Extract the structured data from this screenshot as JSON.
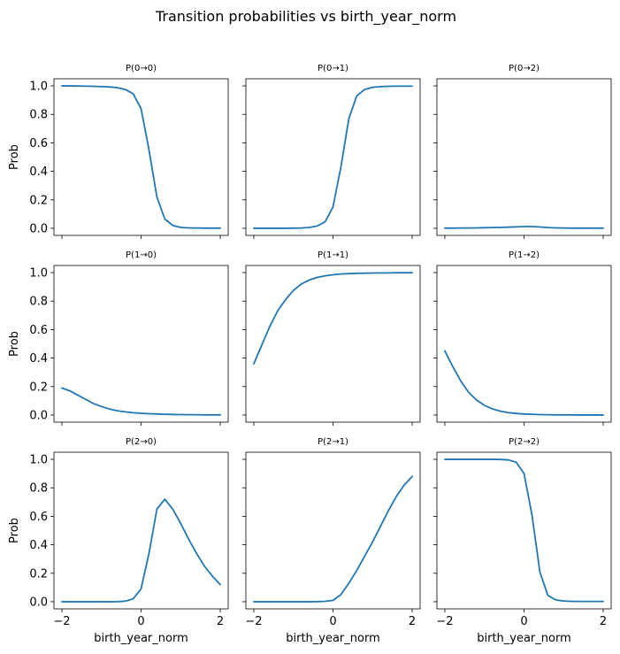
{
  "chart_data": {
    "type": "line",
    "suptitle": "Transition probabilities vs birth_year_norm",
    "xlabel": "birth_year_norm",
    "ylabel": "Prob",
    "xlim": [
      -2.2,
      2.2
    ],
    "ylim": [
      -0.05,
      1.05
    ],
    "xticks": [
      -2,
      0,
      2
    ],
    "yticks": [
      0.0,
      0.2,
      0.4,
      0.6,
      0.8,
      1.0
    ],
    "grid": false,
    "line_color": "#1f77b4",
    "x": [
      -2.0,
      -1.8,
      -1.6,
      -1.4,
      -1.2,
      -1.0,
      -0.8,
      -0.6,
      -0.4,
      -0.2,
      0.0,
      0.2,
      0.4,
      0.6,
      0.8,
      1.0,
      1.2,
      1.4,
      1.6,
      1.8,
      2.0
    ],
    "panels": [
      {
        "title": "P(0→0)",
        "row": 0,
        "col": 0,
        "values": [
          1.0,
          1.0,
          0.999,
          0.998,
          0.997,
          0.995,
          0.993,
          0.988,
          0.975,
          0.945,
          0.84,
          0.55,
          0.22,
          0.065,
          0.02,
          0.006,
          0.003,
          0.002,
          0.001,
          0.001,
          0.001
        ]
      },
      {
        "title": "P(0→1)",
        "row": 0,
        "col": 1,
        "values": [
          0.0,
          0.0,
          0.0,
          0.0,
          0.0,
          0.001,
          0.002,
          0.006,
          0.016,
          0.045,
          0.15,
          0.43,
          0.77,
          0.93,
          0.975,
          0.99,
          0.995,
          0.997,
          0.998,
          0.998,
          0.998
        ]
      },
      {
        "title": "P(0→2)",
        "row": 0,
        "col": 2,
        "values": [
          0.001,
          0.001,
          0.002,
          0.002,
          0.003,
          0.004,
          0.005,
          0.006,
          0.008,
          0.01,
          0.012,
          0.012,
          0.009,
          0.005,
          0.003,
          0.002,
          0.001,
          0.001,
          0.001,
          0.001,
          0.001
        ]
      },
      {
        "title": "P(1→0)",
        "row": 1,
        "col": 0,
        "values": [
          0.19,
          0.17,
          0.14,
          0.11,
          0.08,
          0.06,
          0.042,
          0.03,
          0.022,
          0.016,
          0.012,
          0.009,
          0.007,
          0.005,
          0.004,
          0.003,
          0.002,
          0.002,
          0.001,
          0.001,
          0.001
        ]
      },
      {
        "title": "P(1→1)",
        "row": 1,
        "col": 1,
        "values": [
          0.36,
          0.49,
          0.62,
          0.73,
          0.81,
          0.875,
          0.92,
          0.948,
          0.966,
          0.978,
          0.985,
          0.99,
          0.993,
          0.995,
          0.996,
          0.997,
          0.998,
          0.998,
          0.999,
          0.999,
          0.999
        ]
      },
      {
        "title": "P(1→2)",
        "row": 1,
        "col": 2,
        "values": [
          0.45,
          0.34,
          0.24,
          0.16,
          0.105,
          0.068,
          0.043,
          0.027,
          0.017,
          0.011,
          0.007,
          0.005,
          0.003,
          0.002,
          0.001,
          0.001,
          0.001,
          0.0,
          0.0,
          0.0,
          0.0
        ]
      },
      {
        "title": "P(2→0)",
        "row": 2,
        "col": 0,
        "values": [
          0.0,
          0.0,
          0.0,
          0.0,
          0.0,
          0.0,
          0.0,
          0.001,
          0.004,
          0.02,
          0.09,
          0.34,
          0.65,
          0.72,
          0.65,
          0.55,
          0.44,
          0.34,
          0.25,
          0.18,
          0.12
        ]
      },
      {
        "title": "P(2→1)",
        "row": 2,
        "col": 1,
        "values": [
          0.0,
          0.0,
          0.0,
          0.0,
          0.0,
          0.0,
          0.0,
          0.0,
          0.001,
          0.003,
          0.01,
          0.05,
          0.13,
          0.22,
          0.32,
          0.42,
          0.53,
          0.64,
          0.74,
          0.82,
          0.88
        ]
      },
      {
        "title": "P(2→2)",
        "row": 2,
        "col": 2,
        "values": [
          1.0,
          1.0,
          1.0,
          1.0,
          1.0,
          1.0,
          1.0,
          0.999,
          0.996,
          0.98,
          0.9,
          0.61,
          0.21,
          0.045,
          0.013,
          0.005,
          0.003,
          0.002,
          0.002,
          0.002,
          0.002
        ]
      }
    ]
  }
}
